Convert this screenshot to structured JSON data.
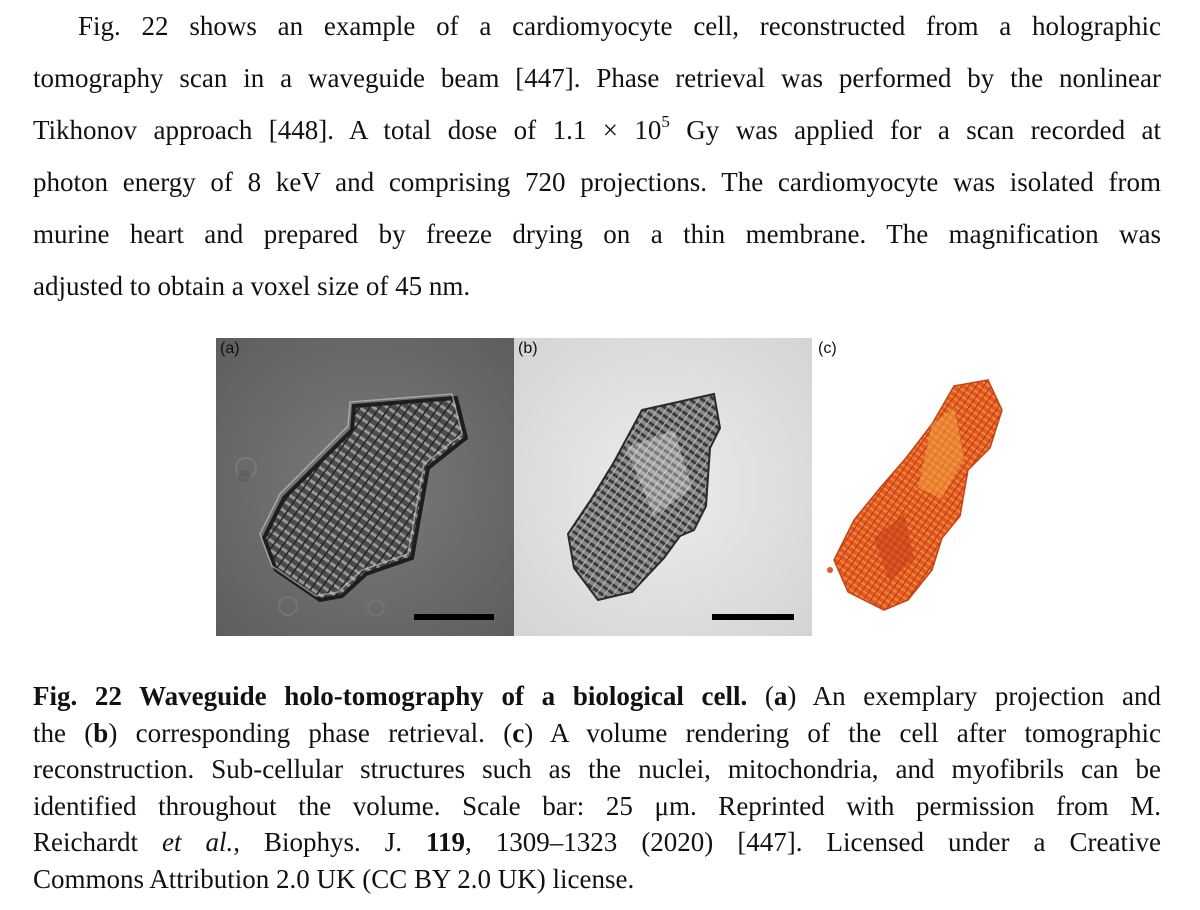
{
  "paragraph": {
    "lines": [
      "Fig. 22 shows an example of a cardiomyocyte cell, reconstructed from a holographic",
      "tomography scan in a waveguide beam [447]. Phase retrieval was performed by the nonlinear",
      "Tikhonov approach [448]. A total dose of 1.1 × 10",
      "photon energy of 8 keV and comprising 720 projections. The cardiomyocyte was isolated from",
      "murine heart and prepared by freeze drying on a thin membrane. The magnification was",
      "adjusted to obtain a voxel size of 45 nm."
    ],
    "dose_exponent": "5",
    "dose_tail": " Gy was applied for a scan recorded at"
  },
  "figure": {
    "panels": [
      {
        "label": "(a)"
      },
      {
        "label": "(b)"
      },
      {
        "label": "(c)"
      }
    ],
    "colors": {
      "panel_a_bg": "#6f6f6f",
      "panel_b_bg": "#e6e6e6",
      "rendering": "#e0501e"
    }
  },
  "caption": {
    "fig_label": "Fig. 22 Waveguide holo-tomography of a biological cell.",
    "a": "a",
    "after_a": " An exemplary projection and",
    "the": "the (",
    "b": "b",
    "after_b": ") corresponding phase retrieval. (",
    "c": "c",
    "after_c": ") A volume rendering of the cell after tomographic",
    "line3": "reconstruction. Sub-cellular structures such as the nuclei, mitochondria, and myofibrils can be",
    "line4": "identified throughout the volume. Scale bar: 25 μm. Reprinted with permission from M.",
    "line5_start": "Reichardt ",
    "etal": "et al.",
    "line5_mid": ", Biophys. J. ",
    "volume": "119",
    "line5_end": ", 1309–1323 (2020) [447]. Licensed under a Creative",
    "line6": "Commons Attribution 2.0 UK (CC BY 2.0 UK) license."
  }
}
